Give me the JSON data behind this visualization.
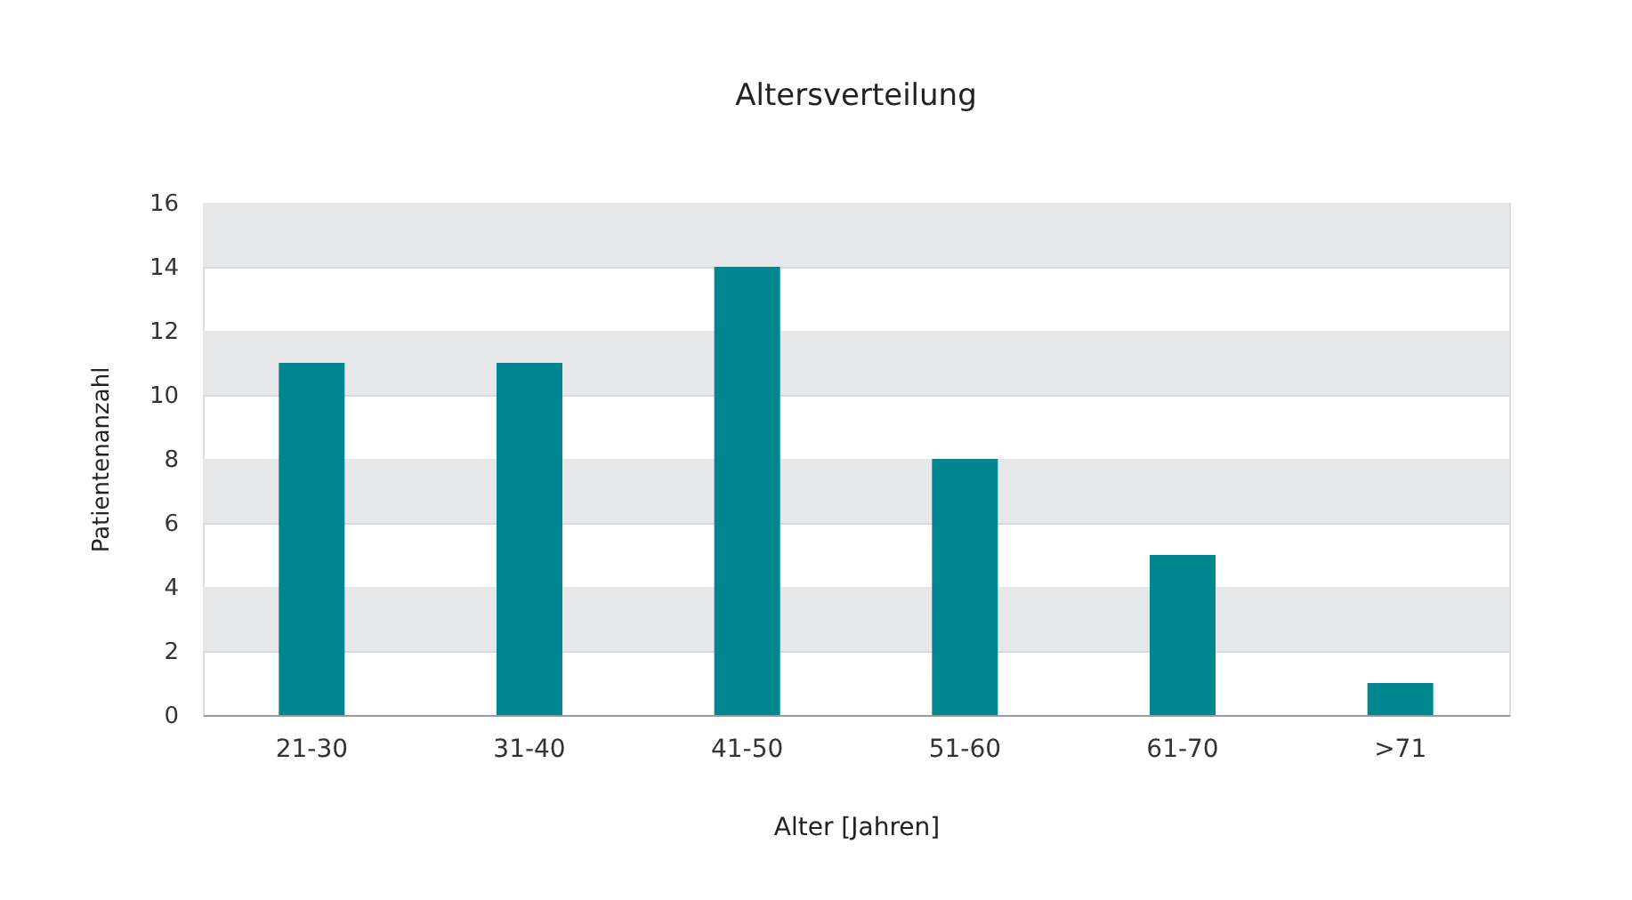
{
  "chart_data": {
    "type": "bar",
    "title": "Altersverteilung",
    "xlabel": "Alter [Jahren]",
    "ylabel": "Patientenanzahl",
    "categories": [
      "21-30",
      "31-40",
      "41-50",
      "51-60",
      "61-70",
      ">71"
    ],
    "values": [
      11,
      11,
      14,
      8,
      5,
      1
    ],
    "color": "#00868f",
    "ylim": [
      0,
      16
    ],
    "yticks": [
      0,
      2,
      4,
      6,
      8,
      10,
      12,
      14,
      16
    ],
    "grid": "y"
  }
}
